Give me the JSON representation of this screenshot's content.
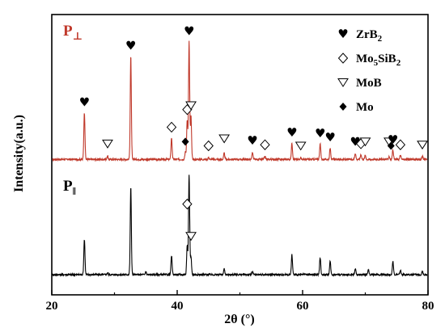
{
  "chart_data": {
    "type": "line",
    "xlabel": "2θ (°)",
    "ylabel": "Intensity(a.u.)",
    "xlim": [
      20,
      80
    ],
    "x_ticks": [
      "20",
      "40",
      "60",
      "80"
    ],
    "legend_position": "top-right",
    "legend": [
      {
        "symbol": "heart",
        "label": "ZrB",
        "sub": "2",
        "label2": "",
        "sub2": ""
      },
      {
        "symbol": "open-diamond",
        "label": "Mo",
        "sub": "5",
        "label2": "SiB",
        "sub2": "2"
      },
      {
        "symbol": "open-triangle-down",
        "label": "MoB",
        "sub": "",
        "label2": "",
        "sub2": ""
      },
      {
        "symbol": "filled-diamond",
        "label": "Mo",
        "sub": "",
        "label2": "",
        "sub2": ""
      }
    ],
    "series": [
      {
        "name": "P⊥",
        "label_main": "P",
        "label_sub": "⊥",
        "color": "#c0392b",
        "baseline": 0.06,
        "peaks": [
          {
            "x": 25.2,
            "h": 0.45
          },
          {
            "x": 28.9,
            "h": 0.03
          },
          {
            "x": 32.6,
            "h": 1.0
          },
          {
            "x": 39.1,
            "h": 0.21
          },
          {
            "x": 41.3,
            "h": 0.07
          },
          {
            "x": 41.6,
            "h": 0.38
          },
          {
            "x": 41.9,
            "h": 1.14
          },
          {
            "x": 42.2,
            "h": 0.42
          },
          {
            "x": 45.0,
            "h": 0.02
          },
          {
            "x": 47.5,
            "h": 0.06
          },
          {
            "x": 52.0,
            "h": 0.06
          },
          {
            "x": 54.0,
            "h": 0.03
          },
          {
            "x": 58.3,
            "h": 0.16
          },
          {
            "x": 59.7,
            "h": 0.02
          },
          {
            "x": 62.8,
            "h": 0.15
          },
          {
            "x": 64.4,
            "h": 0.11
          },
          {
            "x": 68.4,
            "h": 0.06
          },
          {
            "x": 69.3,
            "h": 0.05
          },
          {
            "x": 70.0,
            "h": 0.04
          },
          {
            "x": 73.8,
            "h": 0.03
          },
          {
            "x": 74.4,
            "h": 0.09
          },
          {
            "x": 75.6,
            "h": 0.04
          },
          {
            "x": 79.1,
            "h": 0.03
          }
        ],
        "markers": [
          {
            "symbol": "heart",
            "x": 25.2,
            "h": 0.45
          },
          {
            "symbol": "open-triangle-down",
            "x": 28.9,
            "h": 0.05
          },
          {
            "symbol": "heart",
            "x": 32.6,
            "h": 1.0
          },
          {
            "symbol": "open-diamond",
            "x": 39.1,
            "h": 0.21
          },
          {
            "symbol": "filled-diamond",
            "x": 41.3,
            "h": 0.07
          },
          {
            "symbol": "open-diamond",
            "x": 41.6,
            "h": 0.38
          },
          {
            "symbol": "heart",
            "x": 41.9,
            "h": 1.14
          },
          {
            "symbol": "open-triangle-down",
            "x": 42.2,
            "h": 0.42
          },
          {
            "symbol": "open-diamond",
            "x": 45.0,
            "h": 0.03
          },
          {
            "symbol": "open-triangle-down",
            "x": 47.5,
            "h": 0.1
          },
          {
            "symbol": "heart",
            "x": 52.0,
            "h": 0.08
          },
          {
            "symbol": "open-diamond",
            "x": 54.0,
            "h": 0.04
          },
          {
            "symbol": "heart",
            "x": 58.3,
            "h": 0.16
          },
          {
            "symbol": "open-triangle-down",
            "x": 59.7,
            "h": 0.03
          },
          {
            "symbol": "heart",
            "x": 62.8,
            "h": 0.15
          },
          {
            "symbol": "heart",
            "x": 64.4,
            "h": 0.11
          },
          {
            "symbol": "heart",
            "x": 68.4,
            "h": 0.07
          },
          {
            "symbol": "open-diamond",
            "x": 69.3,
            "h": 0.05
          },
          {
            "symbol": "open-triangle-down",
            "x": 70.0,
            "h": 0.07
          },
          {
            "symbol": "open-triangle-down",
            "x": 73.8,
            "h": 0.07
          },
          {
            "symbol": "filled-diamond",
            "x": 74.1,
            "h": 0.03
          },
          {
            "symbol": "heart",
            "x": 74.4,
            "h": 0.09
          },
          {
            "symbol": "open-diamond",
            "x": 75.6,
            "h": 0.04
          },
          {
            "symbol": "open-triangle-down",
            "x": 79.1,
            "h": 0.04
          }
        ]
      },
      {
        "name": "P‖",
        "label_main": "P",
        "label_sub": "‖",
        "color": "#000000",
        "baseline": 0.0,
        "peaks": [
          {
            "x": 25.2,
            "h": 0.35
          },
          {
            "x": 28.9,
            "h": 0.02
          },
          {
            "x": 32.6,
            "h": 0.88
          },
          {
            "x": 35.0,
            "h": 0.03
          },
          {
            "x": 39.1,
            "h": 0.19
          },
          {
            "x": 41.6,
            "h": 0.29
          },
          {
            "x": 41.9,
            "h": 1.0
          },
          {
            "x": 42.2,
            "h": 0.18
          },
          {
            "x": 47.5,
            "h": 0.06
          },
          {
            "x": 52.0,
            "h": 0.03
          },
          {
            "x": 58.3,
            "h": 0.2
          },
          {
            "x": 62.8,
            "h": 0.17
          },
          {
            "x": 64.4,
            "h": 0.13
          },
          {
            "x": 68.4,
            "h": 0.06
          },
          {
            "x": 70.5,
            "h": 0.05
          },
          {
            "x": 74.4,
            "h": 0.13
          },
          {
            "x": 75.6,
            "h": 0.04
          },
          {
            "x": 79.1,
            "h": 0.03
          }
        ],
        "markers": [
          {
            "symbol": "open-diamond",
            "x": 41.6,
            "h": 0.6
          },
          {
            "symbol": "open-triangle-down",
            "x": 42.2,
            "h": 0.28
          }
        ]
      }
    ]
  }
}
